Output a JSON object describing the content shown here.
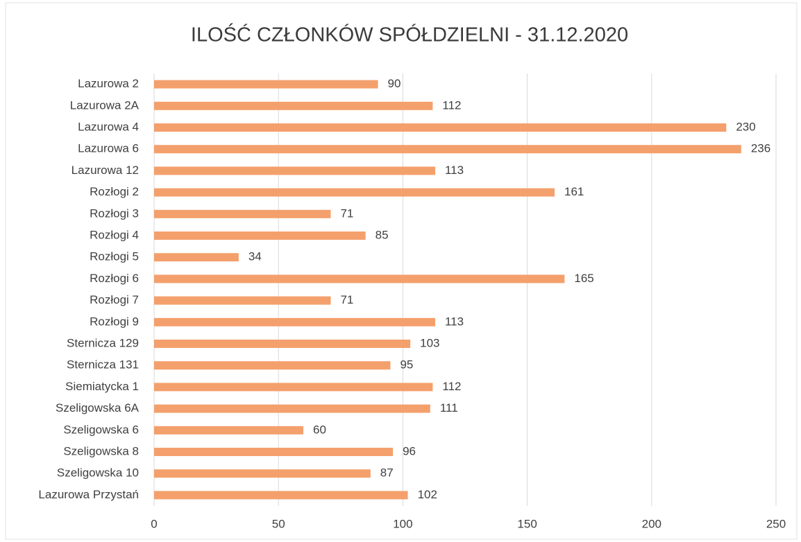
{
  "chart_data": {
    "type": "bar",
    "orientation": "horizontal",
    "title": "ILOŚĆ CZŁONKÓW SPÓŁDZIELNI - 31.12.2020",
    "categories": [
      "Lazurowa 2",
      "Lazurowa 2A",
      "Lazurowa 4",
      "Lazurowa 6",
      "Lazurowa 12",
      "Rozłogi 2",
      "Rozłogi 3",
      "Rozłogi 4",
      "Rozłogi 5",
      "Rozłogi 6",
      "Rozłogi 7",
      "Rozłogi 9",
      "Sternicza 129",
      "Sternicza 131",
      "Siemiatycka 1",
      "Szeligowska 6A",
      "Szeligowska 6",
      "Szeligowska 8",
      "Szeligowska 10",
      "Lazurowa Przystań"
    ],
    "values": [
      90,
      112,
      230,
      236,
      113,
      161,
      71,
      85,
      34,
      165,
      71,
      113,
      103,
      95,
      112,
      111,
      60,
      96,
      87,
      102
    ],
    "color": "#f4a06c",
    "xlim": [
      0,
      250
    ],
    "xticks": [
      0,
      50,
      100,
      150,
      200,
      250
    ],
    "grid": true
  }
}
